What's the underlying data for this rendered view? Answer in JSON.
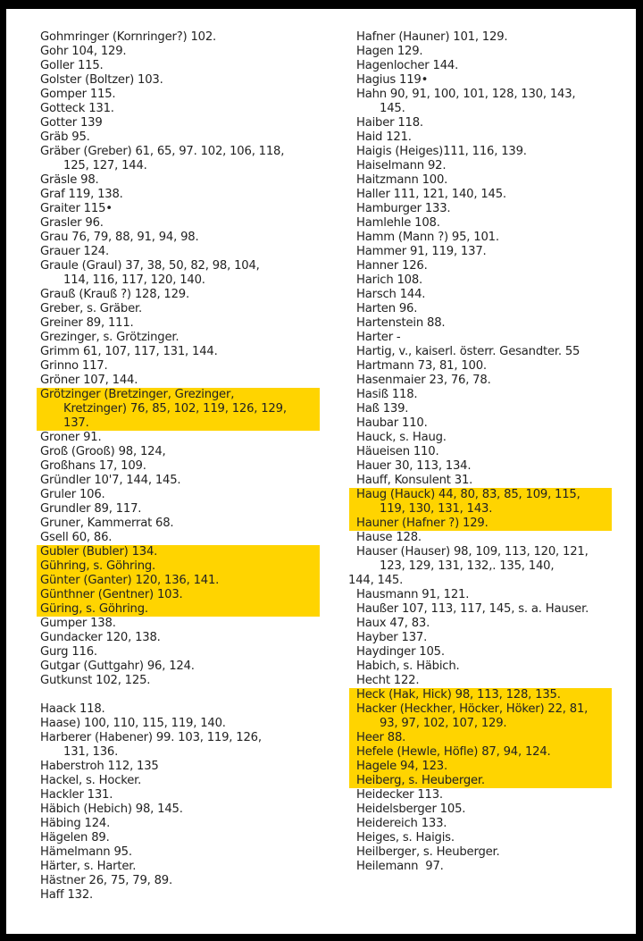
{
  "highlight_color": "#ffd400",
  "page": {
    "columns": [
      {
        "name": "left",
        "lines": [
          {
            "t": "Gohmringer (Kornringer?) 102."
          },
          {
            "t": "Gohr 104, 129."
          },
          {
            "t": "Goller 115."
          },
          {
            "t": "Golster (Boltzer) 103."
          },
          {
            "t": "Gomper 115."
          },
          {
            "t": "Gotteck 131."
          },
          {
            "t": "Gotter 139"
          },
          {
            "t": "Gräb 95."
          },
          {
            "t": "Gräber (Greber) 61, 65, 97. 102, 106, 118,"
          },
          {
            "t": "125, 127, 144.",
            "i": 1
          },
          {
            "t": "Gräsle 98."
          },
          {
            "t": "Graf 119, 138."
          },
          {
            "t": "Graiter 115•"
          },
          {
            "t": "Grasler 96."
          },
          {
            "t": "Grau 76, 79, 88, 91, 94, 98."
          },
          {
            "t": "Grauer 124."
          },
          {
            "t": "Graule (Graul) 37, 38, 50, 82, 98, 104,"
          },
          {
            "t": "114, 116, 117, 120, 140.",
            "i": 1
          },
          {
            "t": "Grauß (Krauß ?) 128, 129."
          },
          {
            "t": "Greber, s. Gräber."
          },
          {
            "t": "Greiner 89, 111."
          },
          {
            "t": "Grezinger, s. Grötzinger."
          },
          {
            "t": "Grimm 61, 107, 117, 131, 144."
          },
          {
            "t": "Grinno 117."
          },
          {
            "t": "Gröner 107, 144."
          },
          {
            "t": "Grötzinger (Bretzinger, Grezinger,",
            "h": true
          },
          {
            "t": "Kretzinger) 76, 85, 102, 119, 126, 129,",
            "i": 1,
            "h": true
          },
          {
            "t": "137.",
            "i": 1,
            "h": true
          },
          {
            "t": "Groner 91."
          },
          {
            "t": "Groß (Grooß) 98, 124,"
          },
          {
            "t": "Großhans 17, 109."
          },
          {
            "t": "Gründler 10'7, 144, 145."
          },
          {
            "t": "Gruler 106."
          },
          {
            "t": "Grundler 89, 117."
          },
          {
            "t": "Gruner, Kammerrat 68."
          },
          {
            "t": "Gsell 60, 86."
          },
          {
            "t": "Gubler (Bubler) 134.",
            "h": true
          },
          {
            "t": "Gühring, s. Göhring.",
            "h": true
          },
          {
            "t": "Günter (Ganter) 120, 136, 141.",
            "h": true
          },
          {
            "t": "Günthner (Gentner) 103.",
            "h": true
          },
          {
            "t": "Güring, s. Göhring.",
            "h": true
          },
          {
            "t": "Gumper 138."
          },
          {
            "t": "Gundacker 120, 138."
          },
          {
            "t": "Gurg 116."
          },
          {
            "t": "Gutgar (Guttgahr) 96, 124."
          },
          {
            "t": "Gutkunst 102, 125."
          },
          {
            "t": "",
            "blank": true
          },
          {
            "t": "Haack 118."
          },
          {
            "t": "Haase) 100, 110, 115, 119, 140."
          },
          {
            "t": "Harberer (Habener) 99. 103, 119, 126,"
          },
          {
            "t": "131, 136.",
            "i": 1
          },
          {
            "t": "Haberstroh 112, 135"
          },
          {
            "t": "Hackel, s. Hocker."
          },
          {
            "t": "Hackler 131."
          },
          {
            "t": "Häbich (Hebich) 98, 145."
          },
          {
            "t": "Häbing 124."
          },
          {
            "t": "Hägelen 89."
          },
          {
            "t": "Hämelmann 95."
          },
          {
            "t": "Härter, s. Harter."
          },
          {
            "t": "Hästner 26, 75, 79, 89."
          },
          {
            "t": "Haff 132."
          }
        ]
      },
      {
        "name": "right",
        "lines": [
          {
            "t": "Hafner (Hauner) 101, 129."
          },
          {
            "t": "Hagen 129."
          },
          {
            "t": "Hagenlocher 144."
          },
          {
            "t": "Hagius 119•"
          },
          {
            "t": "Hahn 90, 91, 100, 101, 128, 130, 143,"
          },
          {
            "t": "145.",
            "i": 1
          },
          {
            "t": "Haiber 118."
          },
          {
            "t": "Haid 121."
          },
          {
            "t": "Haigis (Heiges)111, 116, 139."
          },
          {
            "t": "Haiselmann 92."
          },
          {
            "t": "Haitzmann 100."
          },
          {
            "t": "Haller 111, 121, 140, 145."
          },
          {
            "t": "Hamburger 133."
          },
          {
            "t": "Hamlehle 108."
          },
          {
            "t": "Hamm (Mann ?) 95, 101."
          },
          {
            "t": "Hammer 91, 119, 137."
          },
          {
            "t": "Hanner 126."
          },
          {
            "t": "Harich 108."
          },
          {
            "t": "Harsch 144."
          },
          {
            "t": "Harten 96."
          },
          {
            "t": "Hartenstein 88."
          },
          {
            "t": "Harter -"
          },
          {
            "t": "Hartig, v., kaiserl. österr. Gesandter. 55"
          },
          {
            "t": "Hartmann 73, 81, 100."
          },
          {
            "t": "Hasenmaier 23, 76, 78."
          },
          {
            "t": "Hasiß 118."
          },
          {
            "t": "Haß 139."
          },
          {
            "t": "Haubar 110."
          },
          {
            "t": "Hauck, s. Haug."
          },
          {
            "t": "Häueisen 110."
          },
          {
            "t": "Hauer 30, 113, 134."
          },
          {
            "t": "Hauff, Konsulent 31."
          },
          {
            "t": "Haug (Hauck) 44, 80, 83, 85, 109, 115,",
            "h": true
          },
          {
            "t": "119, 130, 131, 143.",
            "i": 1,
            "h": true
          },
          {
            "t": "Hauner (Hafner ?) 129.",
            "h": true
          },
          {
            "t": "Hause 128."
          },
          {
            "t": "Hauser (Hauser) 98, 109, 113, 120, 121,"
          },
          {
            "t": "123, 129, 131, 132,. 135, 140,",
            "i": 1
          },
          {
            "t": "144, 145.",
            "i": 2
          },
          {
            "t": "Hausmann 91, 121."
          },
          {
            "t": "Haußer 107, 113, 117, 145, s. a. Hauser."
          },
          {
            "t": "Haux 47, 83."
          },
          {
            "t": "Hayber 137."
          },
          {
            "t": "Haydinger 105."
          },
          {
            "t": "Habich, s. Häbich."
          },
          {
            "t": "Hecht 122."
          },
          {
            "t": "Heck (Hak, Hick) 98, 113, 128, 135.",
            "h": true
          },
          {
            "t": "Hacker (Heckher, Höcker, Höker) 22, 81,",
            "h": true
          },
          {
            "t": "93, 97, 102, 107, 129.",
            "i": 1,
            "h": true
          },
          {
            "t": "Heer 88.",
            "h": true
          },
          {
            "t": "Hefele (Hewle, Höfle) 87, 94, 124.",
            "h": true
          },
          {
            "t": "Hagele 94, 123.",
            "h": true
          },
          {
            "t": "Heiberg, s. Heuberger.",
            "h": true
          },
          {
            "t": "Heidecker 113."
          },
          {
            "t": "Heidelsberger 105."
          },
          {
            "t": "Heidereich 133."
          },
          {
            "t": "Heiges, s. Haigis."
          },
          {
            "t": "Heilberger, s. Heuberger."
          },
          {
            "t": "Heilemann  97."
          }
        ]
      }
    ]
  }
}
